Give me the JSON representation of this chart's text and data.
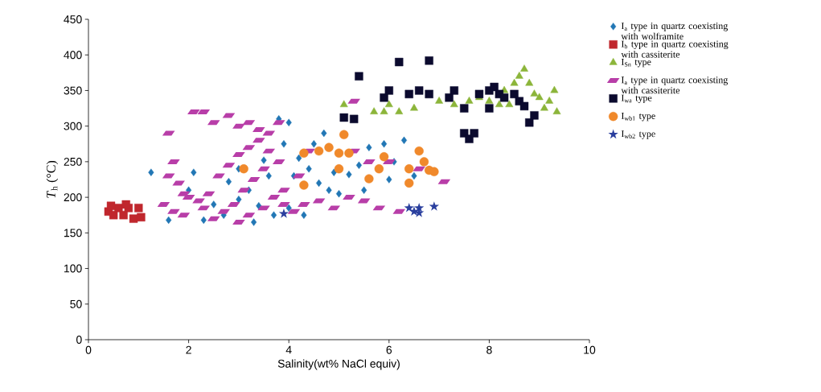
{
  "chart_data": {
    "type": "scatter",
    "xlabel": "Salinity(wt% NaCl equiv)",
    "ylabel": "*T*$_{h}$ (°C)",
    "xlim": [
      0,
      10
    ],
    "xticks": [
      0,
      2,
      4,
      6,
      8,
      10
    ],
    "ylim": [
      0,
      450
    ],
    "yticks": [
      0,
      50,
      100,
      150,
      200,
      250,
      300,
      350,
      400,
      450
    ],
    "legend": "right",
    "series": [
      {
        "name": "I$_{a}$ type in quartz coexisting with wolframite",
        "color": "#2277b5",
        "marker": "diamond",
        "x": [
          1.25,
          2.1,
          1.6,
          2.3,
          2.0,
          2.8,
          3.0,
          3.3,
          3.0,
          3.5,
          3.8,
          4.0,
          3.9,
          4.2,
          4.4,
          4.5,
          4.7,
          4.6,
          4.8,
          5.0,
          5.2,
          5.4,
          5.6,
          5.9,
          5.5,
          6.1,
          6.3,
          6.5,
          6.0,
          4.0,
          3.7,
          4.3,
          2.5,
          3.2,
          3.6,
          4.1,
          2.7,
          3.4,
          4.9
        ],
        "values": [
          235,
          235,
          168,
          168,
          210,
          222,
          197,
          165,
          240,
          252,
          310,
          305,
          275,
          255,
          240,
          275,
          290,
          220,
          210,
          205,
          232,
          245,
          270,
          275,
          210,
          250,
          280,
          230,
          225,
          185,
          175,
          175,
          190,
          210,
          230,
          230,
          175,
          188,
          235
        ]
      },
      {
        "name": "I$_{b}$ type in quartz coexisting with cassiterite",
        "color": "#c0272d",
        "marker": "square",
        "x": [
          0.4,
          0.5,
          0.6,
          0.7,
          0.8,
          0.9,
          1.0,
          1.05,
          0.45,
          0.75
        ],
        "values": [
          180,
          175,
          185,
          175,
          185,
          170,
          185,
          172,
          188,
          190
        ]
      },
      {
        "name": "I$_{Sn}$ type",
        "color": "#8cb53a",
        "marker": "triangle",
        "x": [
          5.1,
          5.7,
          5.9,
          6.0,
          6.2,
          6.5,
          7.0,
          7.3,
          7.6,
          7.8,
          8.0,
          8.2,
          8.3,
          8.5,
          8.6,
          8.7,
          8.8,
          8.9,
          9.0,
          9.2,
          9.3,
          9.35,
          9.1,
          8.4
        ],
        "values": [
          330,
          320,
          320,
          330,
          320,
          325,
          335,
          330,
          335,
          340,
          335,
          330,
          350,
          360,
          370,
          380,
          360,
          345,
          340,
          335,
          350,
          320,
          325,
          330
        ]
      },
      {
        "name": "I$_{a}$ type in quartz coexisting with cassiterite",
        "color": "#b83ea8",
        "x": [
          1.6,
          2.1,
          2.3,
          2.5,
          2.8,
          3.0,
          3.2,
          3.4,
          3.8,
          3.6,
          1.7,
          1.6,
          1.8,
          2.0,
          1.5,
          1.7,
          1.9,
          2.2,
          2.4,
          2.6,
          2.8,
          3.0,
          3.2,
          3.4,
          3.6,
          3.8,
          3.5,
          3.3,
          3.1,
          2.9,
          2.7,
          2.5,
          3.0,
          3.2,
          3.5,
          3.7,
          3.9,
          4.1,
          4.3,
          4.6,
          4.9,
          5.2,
          5.5,
          5.8,
          6.2,
          4.4,
          5.3,
          5.6,
          6.0,
          6.6,
          7.1,
          5.3,
          4.2,
          2.3,
          1.9,
          3.9
        ],
        "values": [
          290,
          320,
          320,
          305,
          315,
          300,
          305,
          295,
          305,
          290,
          250,
          230,
          220,
          200,
          190,
          180,
          175,
          195,
          205,
          230,
          245,
          260,
          270,
          280,
          265,
          250,
          240,
          225,
          210,
          190,
          180,
          170,
          165,
          175,
          185,
          200,
          210,
          180,
          190,
          195,
          185,
          200,
          195,
          185,
          180,
          265,
          265,
          250,
          250,
          240,
          222,
          335,
          230,
          185,
          205,
          190
        ]
      },
      {
        "name": "I$_{wa}$ type",
        "color": "#0b0a2e",
        "marker": "square",
        "x": [
          5.1,
          5.3,
          5.4,
          5.9,
          6.0,
          6.2,
          6.4,
          6.6,
          6.8,
          6.8,
          7.2,
          7.3,
          7.5,
          7.6,
          7.7,
          7.8,
          8.0,
          8.1,
          8.2,
          8.3,
          8.5,
          8.6,
          8.7,
          8.8,
          8.9,
          8.0,
          7.5
        ],
        "values": [
          312,
          310,
          370,
          340,
          350,
          390,
          345,
          350,
          392,
          345,
          340,
          350,
          290,
          282,
          290,
          345,
          350,
          355,
          345,
          340,
          345,
          335,
          328,
          305,
          315,
          325,
          325
        ]
      },
      {
        "name": "I$_{wb1}$ type",
        "color": "#f0892b",
        "marker": "circle",
        "x": [
          4.3,
          4.3,
          4.6,
          4.8,
          5.0,
          5.1,
          5.2,
          5.0,
          5.6,
          5.8,
          5.9,
          6.4,
          6.4,
          6.6,
          6.7,
          6.8,
          6.9,
          3.1
        ],
        "values": [
          217,
          262,
          265,
          270,
          240,
          288,
          262,
          262,
          226,
          240,
          257,
          220,
          240,
          265,
          250,
          238,
          236,
          240
        ]
      },
      {
        "name": "I$_{wb2}$ type",
        "color": "#2a3f9e",
        "marker": "star",
        "x": [
          3.9,
          6.4,
          6.5,
          6.6,
          6.6,
          6.9
        ],
        "values": [
          177,
          185,
          180,
          185,
          178,
          187
        ]
      }
    ]
  }
}
